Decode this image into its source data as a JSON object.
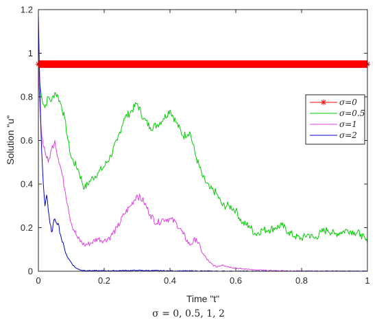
{
  "chart_data": {
    "type": "line",
    "title": "",
    "xlabel": "Time \"t\"",
    "ylabel": "Solution \"u\"",
    "xlim": [
      0,
      1
    ],
    "ylim": [
      0,
      1.2
    ],
    "xticks": [
      "0",
      "0.2",
      "0.4",
      "0.6",
      "0.8",
      "1"
    ],
    "yticks": [
      "0",
      "0.2",
      "0.4",
      "0.6",
      "0.8",
      "1",
      "1.2"
    ],
    "grid": false,
    "legend_position": "right",
    "series": [
      {
        "name": "σ=0",
        "color": "#ff0000",
        "marker": "asterisk",
        "x": [
          0,
          0.05,
          0.1,
          0.15,
          0.2,
          0.25,
          0.3,
          0.35,
          0.4,
          0.45,
          0.5,
          0.55,
          0.6,
          0.65,
          0.7,
          0.75,
          0.8,
          0.85,
          0.9,
          0.95,
          1.0
        ],
        "y": [
          0.95,
          0.95,
          0.95,
          0.95,
          0.95,
          0.95,
          0.95,
          0.95,
          0.95,
          0.95,
          0.95,
          0.95,
          0.95,
          0.95,
          0.95,
          0.95,
          0.95,
          0.95,
          0.95,
          0.95,
          0.95
        ]
      },
      {
        "name": "σ=0.5",
        "color": "#00cc00",
        "x": [
          0,
          0.005,
          0.01,
          0.02,
          0.03,
          0.04,
          0.05,
          0.06,
          0.07,
          0.08,
          0.09,
          0.1,
          0.12,
          0.14,
          0.16,
          0.18,
          0.2,
          0.22,
          0.24,
          0.26,
          0.28,
          0.3,
          0.32,
          0.34,
          0.36,
          0.38,
          0.4,
          0.42,
          0.44,
          0.46,
          0.48,
          0.5,
          0.52,
          0.54,
          0.56,
          0.58,
          0.6,
          0.62,
          0.64,
          0.66,
          0.68,
          0.7,
          0.72,
          0.74,
          0.76,
          0.78,
          0.8,
          0.82,
          0.84,
          0.86,
          0.88,
          0.9,
          0.92,
          0.94,
          0.96,
          0.98,
          1.0
        ],
        "y": [
          0.95,
          0.85,
          0.8,
          0.75,
          0.8,
          0.78,
          0.82,
          0.8,
          0.76,
          0.7,
          0.6,
          0.52,
          0.47,
          0.38,
          0.42,
          0.45,
          0.48,
          0.53,
          0.6,
          0.7,
          0.73,
          0.77,
          0.7,
          0.66,
          0.67,
          0.7,
          0.74,
          0.68,
          0.62,
          0.64,
          0.52,
          0.43,
          0.38,
          0.36,
          0.3,
          0.3,
          0.28,
          0.22,
          0.21,
          0.17,
          0.19,
          0.19,
          0.2,
          0.21,
          0.18,
          0.16,
          0.15,
          0.17,
          0.15,
          0.18,
          0.19,
          0.17,
          0.18,
          0.19,
          0.18,
          0.17,
          0.13
        ]
      },
      {
        "name": "σ=1",
        "color": "#e040e0",
        "x": [
          0,
          0.005,
          0.01,
          0.02,
          0.03,
          0.04,
          0.05,
          0.06,
          0.07,
          0.08,
          0.09,
          0.1,
          0.12,
          0.14,
          0.16,
          0.18,
          0.2,
          0.22,
          0.24,
          0.26,
          0.28,
          0.3,
          0.32,
          0.34,
          0.36,
          0.38,
          0.4,
          0.42,
          0.44,
          0.46,
          0.48,
          0.5,
          0.52,
          0.54,
          0.56,
          0.58,
          0.6,
          0.62,
          0.64,
          0.66,
          0.68,
          0.7,
          0.75,
          0.8,
          0.85,
          0.9,
          0.95,
          1.0
        ],
        "y": [
          0.95,
          0.75,
          0.62,
          0.55,
          0.5,
          0.56,
          0.6,
          0.52,
          0.46,
          0.38,
          0.3,
          0.22,
          0.15,
          0.12,
          0.13,
          0.15,
          0.14,
          0.16,
          0.2,
          0.26,
          0.3,
          0.35,
          0.32,
          0.26,
          0.22,
          0.24,
          0.24,
          0.22,
          0.17,
          0.12,
          0.15,
          0.08,
          0.04,
          0.02,
          0.03,
          0.02,
          0.015,
          0.01,
          0.01,
          0.005,
          0.005,
          0.003,
          0.002,
          0.001,
          0.001,
          0.0,
          0.0,
          0.0
        ]
      },
      {
        "name": "σ=2",
        "color": "#0000cc",
        "x": [
          0,
          0.003,
          0.006,
          0.01,
          0.015,
          0.02,
          0.025,
          0.03,
          0.035,
          0.04,
          0.05,
          0.06,
          0.07,
          0.08,
          0.09,
          0.1,
          0.11,
          0.12,
          0.13,
          0.15,
          0.2,
          0.3,
          0.4,
          0.5,
          0.6,
          0.8,
          1.0
        ],
        "y": [
          1.18,
          0.95,
          0.75,
          0.55,
          0.4,
          0.3,
          0.35,
          0.28,
          0.22,
          0.18,
          0.24,
          0.22,
          0.15,
          0.1,
          0.06,
          0.04,
          0.02,
          0.01,
          0.005,
          0.003,
          0.002,
          0.004,
          0.002,
          0.001,
          0.0,
          0.0,
          0.0
        ]
      }
    ]
  },
  "caption": "σ = 0, 0.5, 1,  2"
}
